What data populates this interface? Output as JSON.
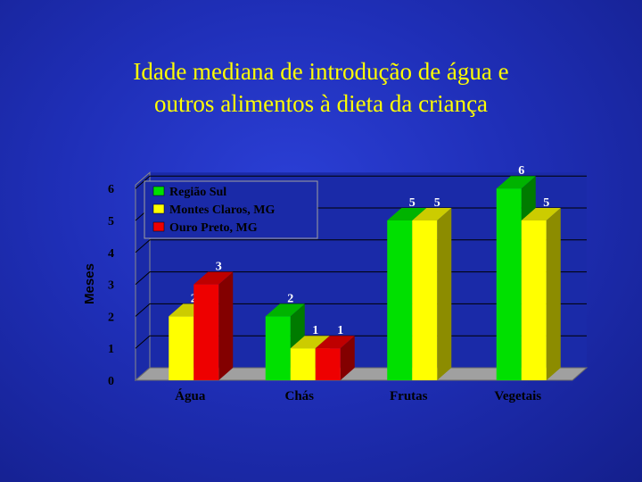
{
  "title_lines": [
    "Idade mediana de introdução de água e",
    "outros alimentos à dieta da criança"
  ],
  "chart_data": {
    "type": "bar",
    "title": "Idade mediana de introdução de água e outros alimentos à dieta da criança",
    "xlabel": "",
    "ylabel": "Meses",
    "ylim": [
      0,
      6
    ],
    "yticks": [
      "0",
      "1",
      "2",
      "3",
      "4",
      "5",
      "6"
    ],
    "categories": [
      "Água",
      "Chás",
      "Frutas",
      "Vegetais"
    ],
    "series": [
      {
        "name": "Região Sul",
        "color": "#00e000",
        "values": [
          null,
          2,
          5,
          6
        ],
        "labels": [
          "",
          "2",
          "5",
          "6"
        ]
      },
      {
        "name": "Montes Claros, MG",
        "color": "#ffff00",
        "values": [
          2,
          1,
          5,
          5
        ],
        "labels": [
          "2",
          "1",
          "5",
          "5"
        ]
      },
      {
        "name": "Ouro Preto, MG",
        "color": "#ee0000",
        "values": [
          3,
          1,
          null,
          null
        ],
        "labels": [
          "3",
          "1",
          "",
          ""
        ]
      }
    ],
    "legend_position": "top-left",
    "grid": true
  }
}
